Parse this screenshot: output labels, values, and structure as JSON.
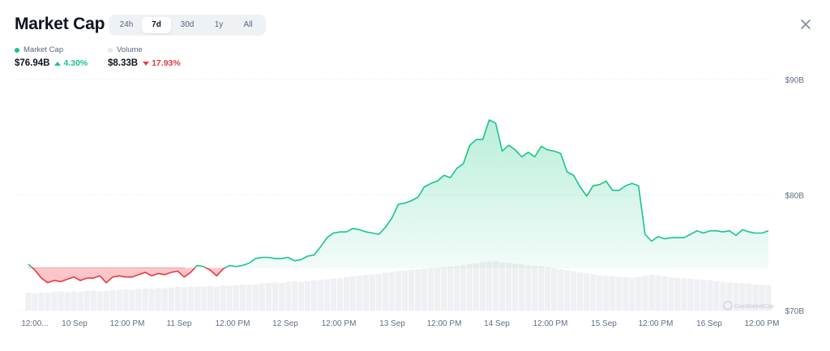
{
  "header": {
    "title": "Market Cap",
    "tabs": [
      {
        "label": "24h",
        "active": false
      },
      {
        "label": "7d",
        "active": true
      },
      {
        "label": "30d",
        "active": false
      },
      {
        "label": "1y",
        "active": false
      },
      {
        "label": "All",
        "active": false
      }
    ],
    "close_icon": "close-icon"
  },
  "legend": {
    "market_cap": {
      "label": "Market Cap",
      "value": "$76.94B",
      "change": "4.30%",
      "direction": "up",
      "color": "#16c784"
    },
    "volume": {
      "label": "Volume",
      "value": "$8.33B",
      "change": "17.93%",
      "direction": "down",
      "color": "#e5e8ec"
    }
  },
  "colors": {
    "up": "#16c784",
    "down": "#ea3943",
    "volume": "#eef0f3",
    "grid": "#eff2f5"
  },
  "watermark": "CoinMarketCap",
  "chart_data": {
    "type": "area",
    "title": "Market Cap",
    "ylim": [
      70,
      90
    ],
    "y_ticks": [
      "$90B",
      "$80B",
      "$70B"
    ],
    "y_tick_values": [
      90,
      80,
      70
    ],
    "x_ticks": [
      "12:00...",
      "10 Sep",
      "12:00 PM",
      "11 Sep",
      "12:00 PM",
      "12 Sep",
      "12:00 PM",
      "13 Sep",
      "12:00 PM",
      "14 Sep",
      "12:00 PM",
      "15 Sep",
      "12:00 PM",
      "16 Sep",
      "12:00 PM"
    ],
    "baseline": 73.7,
    "grid": true,
    "series": [
      {
        "name": "Market Cap",
        "unit": "B USD",
        "values": [
          74.0,
          73.5,
          72.8,
          72.4,
          72.6,
          72.5,
          72.7,
          72.9,
          72.6,
          72.8,
          72.8,
          73.0,
          72.4,
          72.9,
          73.0,
          72.9,
          72.9,
          73.1,
          73.3,
          73.0,
          73.2,
          73.1,
          73.3,
          73.4,
          72.9,
          73.3,
          73.9,
          73.8,
          73.5,
          73.0,
          73.6,
          73.9,
          73.8,
          73.9,
          74.1,
          74.5,
          74.6,
          74.6,
          74.5,
          74.5,
          74.6,
          74.3,
          74.4,
          74.7,
          74.8,
          75.5,
          76.3,
          76.7,
          76.8,
          76.8,
          77.1,
          77.0,
          76.8,
          76.7,
          76.6,
          77.2,
          78.0,
          79.2,
          79.3,
          79.5,
          79.8,
          80.7,
          81.0,
          81.2,
          81.7,
          81.5,
          82.3,
          82.7,
          84.3,
          84.8,
          84.8,
          86.5,
          86.2,
          83.8,
          84.3,
          83.9,
          83.3,
          83.7,
          83.3,
          84.2,
          83.9,
          83.8,
          83.6,
          82.0,
          81.7,
          80.7,
          79.9,
          80.8,
          80.9,
          81.2,
          80.4,
          80.4,
          80.8,
          81.0,
          80.8,
          76.6,
          76.0,
          76.4,
          76.2,
          76.3,
          76.3,
          76.3,
          76.6,
          76.9,
          76.7,
          76.9,
          76.9,
          76.8,
          76.9,
          76.5,
          77.0,
          76.8,
          76.7,
          76.7,
          76.9
        ]
      },
      {
        "name": "Volume",
        "unit": "relative",
        "values": [
          0.35,
          0.34,
          0.36,
          0.35,
          0.37,
          0.38,
          0.36,
          0.38,
          0.37,
          0.39,
          0.4,
          0.38,
          0.39,
          0.4,
          0.41,
          0.42,
          0.41,
          0.43,
          0.44,
          0.43,
          0.45,
          0.44,
          0.45,
          0.47,
          0.46,
          0.47,
          0.48,
          0.47,
          0.49,
          0.48,
          0.5,
          0.49,
          0.5,
          0.52,
          0.51,
          0.52,
          0.54,
          0.55,
          0.56,
          0.55,
          0.57,
          0.58,
          0.57,
          0.58,
          0.6,
          0.61,
          0.62,
          0.63,
          0.64,
          0.66,
          0.68,
          0.69,
          0.71,
          0.72,
          0.73,
          0.75,
          0.76,
          0.78,
          0.79,
          0.81,
          0.82,
          0.83,
          0.84,
          0.85,
          0.86,
          0.87,
          0.88,
          0.9,
          0.92,
          0.94,
          0.96,
          0.97,
          0.98,
          0.96,
          0.95,
          0.93,
          0.92,
          0.9,
          0.89,
          0.88,
          0.86,
          0.84,
          0.82,
          0.8,
          0.78,
          0.76,
          0.74,
          0.72,
          0.7,
          0.69,
          0.68,
          0.67,
          0.66,
          0.65,
          0.67,
          0.69,
          0.71,
          0.7,
          0.68,
          0.66,
          0.65,
          0.64,
          0.63,
          0.62,
          0.61,
          0.6,
          0.58,
          0.57,
          0.56,
          0.55,
          0.54,
          0.53,
          0.52,
          0.51,
          0.5
        ]
      }
    ]
  }
}
